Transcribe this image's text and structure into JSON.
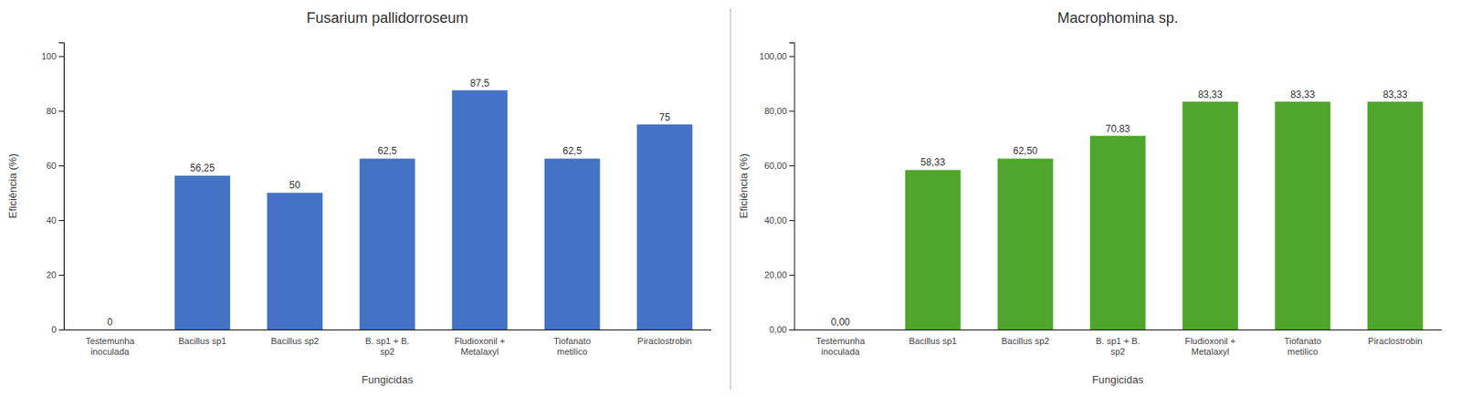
{
  "chart_data": [
    {
      "type": "bar",
      "title": "Fusarium pallidorroseum",
      "categories": [
        "Testemunha\ninoculada",
        "Bacillus sp1",
        "Bacillus sp2",
        "B. sp1 + B.\nsp2",
        "Fludioxonil +\nMetalaxyl",
        "Tiofanato\nmetilico",
        "Piraclostrobin"
      ],
      "values": [
        0,
        56.25,
        50,
        62.5,
        87.5,
        62.5,
        75
      ],
      "value_labels": [
        "0",
        "56,25",
        "50",
        "62,5",
        "87,5",
        "62,5",
        "75"
      ],
      "data_labels": true,
      "color": "#4472C4",
      "ylabel": "Eficiência (%)",
      "xlabel": "Fungicidas",
      "ylim": [
        0,
        105
      ],
      "yticks": [
        0,
        20,
        40,
        60,
        80,
        100
      ],
      "grid": false
    },
    {
      "type": "bar",
      "title": "Macrophomina sp.",
      "categories": [
        "Testemunha\ninoculada",
        "Bacillus sp1",
        "Bacillus sp2",
        "B. sp1 + B.\nsp2",
        "Fludioxonil +\nMetalaxyl",
        "Tiofanato\nmetilico",
        "Piraclostrobin"
      ],
      "values": [
        0,
        58.33,
        62.5,
        70.83,
        83.33,
        83.33,
        83.33
      ],
      "value_labels": [
        "0,00",
        "58,33",
        "62,50",
        "70,83",
        "83,33",
        "83,33",
        "83,33"
      ],
      "data_labels": true,
      "color": "#4EA72A",
      "ylabel": "Eficiência (%)",
      "xlabel": "Fungicidas",
      "ylim": [
        0,
        105
      ],
      "yticks": [
        {
          "value": 0,
          "label": "0,00"
        },
        {
          "value": 20,
          "label": "20,00"
        },
        {
          "value": 40,
          "label": "40,00"
        },
        {
          "value": 60,
          "label": "60,00"
        },
        {
          "value": 80,
          "label": "80,00"
        },
        {
          "value": 100,
          "label": "100,00"
        }
      ],
      "grid": false
    }
  ]
}
